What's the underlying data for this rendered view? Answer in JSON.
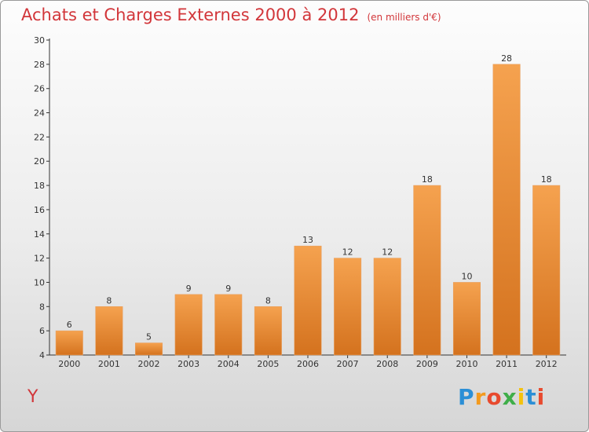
{
  "header": {
    "title": "Achats et Charges Externes 2000 à 2012",
    "unit": "(en milliers d'€)"
  },
  "chart_data": {
    "type": "bar",
    "title": "Achats et Charges Externes 2000 à 2012",
    "subtitle": "(en milliers d'€)",
    "xlabel": "",
    "ylabel": "",
    "categories": [
      "2000",
      "2001",
      "2002",
      "2003",
      "2004",
      "2005",
      "2006",
      "2007",
      "2008",
      "2009",
      "2010",
      "2011",
      "2012"
    ],
    "values": [
      6,
      8,
      5,
      9,
      9,
      8,
      13,
      12,
      12,
      18,
      10,
      28,
      18
    ],
    "ylim": [
      4,
      30
    ],
    "yticks": [
      4,
      6,
      8,
      10,
      12,
      14,
      16,
      18,
      20,
      22,
      24,
      26,
      28,
      30
    ],
    "grid": false,
    "legend": "none",
    "bar_color_top": "#f5a24f",
    "bar_color_bottom": "#d4721e"
  },
  "footer": {
    "commune": "Y",
    "logo_letters": [
      "P",
      "r",
      "o",
      "x",
      "i",
      "t",
      "i"
    ],
    "logo_colors": [
      "#2b8fd6",
      "#f39a1e",
      "#e84a2e",
      "#3fae49",
      "#f4c20d",
      "#2b8fd6",
      "#e84a2e"
    ]
  }
}
